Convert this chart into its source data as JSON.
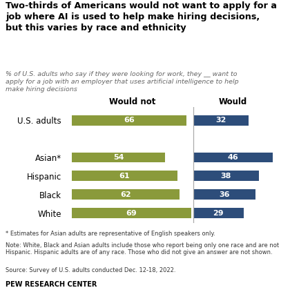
{
  "title": "Two-thirds of Americans would not want to apply for a\njob where AI is used to help make hiring decisions,\nbut this varies by race and ethnicity",
  "subtitle": "% of U.S. adults who say if they were looking for work, they __ want to\napply for a job with an employer that uses artificial intelligence to help\nmake hiring decisions",
  "categories": [
    "U.S. adults",
    "Asian*",
    "Hispanic",
    "Black",
    "White"
  ],
  "would_not": [
    66,
    54,
    61,
    62,
    69
  ],
  "would": [
    32,
    46,
    38,
    36,
    29
  ],
  "color_would_not": "#8a9a3b",
  "color_would": "#2d4d7a",
  "col_header_not": "Would not",
  "col_header_would": "Would",
  "footnote1": "* Estimates for Asian adults are representative of English speakers only.",
  "footnote2": "Note: White, Black and Asian adults include those who report being only one race and are not Hispanic. Hispanic adults are of any race. Those who did not give an answer are not shown.",
  "footnote3": "Source: Survey of U.S. adults conducted Dec. 12-18, 2022.",
  "footer": "PEW RESEARCH CENTER",
  "background_color": "#ffffff",
  "text_color": "#333333",
  "subtitle_color": "#666666"
}
